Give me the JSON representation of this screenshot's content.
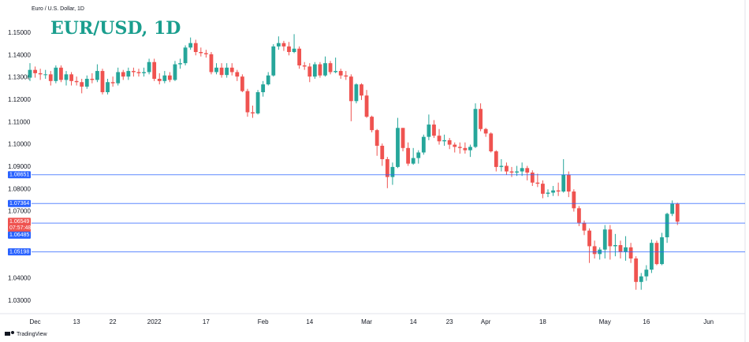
{
  "chart_data": {
    "type": "candlestick",
    "symbol_name": "Euro / U.S. Dollar, 1D",
    "title": "EUR/USD, 1D",
    "brand": "TradingView",
    "up_color": "#26a69a",
    "down_color": "#ef5350",
    "level_color": "#2962ff",
    "ylim": [
      1.0243,
      1.1648
    ],
    "yticks": [
      {
        "value": 1.15,
        "label": "1.15000"
      },
      {
        "value": 1.14,
        "label": "1.14000"
      },
      {
        "value": 1.13,
        "label": "1.13000"
      },
      {
        "value": 1.12,
        "label": "1.12000"
      },
      {
        "value": 1.11,
        "label": "1.11000"
      },
      {
        "value": 1.1,
        "label": "1.10000"
      },
      {
        "value": 1.09,
        "label": "1.09000"
      },
      {
        "value": 1.08,
        "label": "1.08000"
      },
      {
        "value": 1.07,
        "label": "1.07000"
      },
      {
        "value": 1.04,
        "label": "1.04000"
      },
      {
        "value": 1.03,
        "label": "1.03000"
      }
    ],
    "levels": [
      1.08651,
      1.07364,
      1.06485,
      1.05198
    ],
    "countdown": "07:57:48",
    "categories": [
      null,
      "Dec",
      null,
      null,
      null,
      null,
      null,
      null,
      null,
      "13",
      null,
      null,
      null,
      null,
      null,
      null,
      "22",
      null,
      null,
      null,
      null,
      null,
      null,
      null,
      "2022",
      null,
      null,
      null,
      null,
      null,
      null,
      null,
      null,
      null,
      "17",
      null,
      null,
      null,
      null,
      null,
      null,
      null,
      null,
      null,
      null,
      "Feb",
      null,
      null,
      null,
      null,
      null,
      null,
      null,
      null,
      "14",
      null,
      null,
      null,
      null,
      null,
      null,
      null,
      null,
      null,
      null,
      "Mar",
      null,
      null,
      null,
      null,
      null,
      null,
      null,
      null,
      "14",
      null,
      null,
      null,
      null,
      null,
      null,
      "23",
      null,
      null,
      null,
      null,
      null,
      null,
      "Apr",
      null,
      null,
      null,
      null,
      null,
      null,
      null,
      null,
      null,
      null,
      "18",
      null,
      null,
      null,
      null,
      null,
      null,
      null,
      null,
      null,
      null,
      null,
      "May",
      null,
      null,
      null,
      null,
      null,
      null,
      null,
      "16",
      null,
      null,
      null,
      null,
      null,
      null,
      null,
      null,
      null,
      null,
      null,
      "Jun",
      null,
      null,
      null,
      null,
      null,
      null
    ],
    "open": [
      1.13,
      1.1335,
      1.132,
      1.1315,
      1.1315,
      1.1285,
      1.1345,
      1.129,
      1.1315,
      1.1285,
      1.128,
      1.126,
      1.1295,
      1.129,
      1.133,
      1.1235,
      1.128,
      1.1275,
      1.1325,
      1.1305,
      1.133,
      1.1325,
      1.132,
      1.1325,
      1.137,
      1.1295,
      1.1285,
      1.131,
      1.129,
      1.136,
      1.1365,
      1.1435,
      1.1455,
      1.1415,
      1.141,
      1.1405,
      1.1325,
      1.1345,
      1.1312,
      1.1345,
      1.1325,
      1.1305,
      1.124,
      1.1145,
      1.114,
      1.1235,
      1.127,
      1.131,
      1.144,
      1.1455,
      1.144,
      1.1415,
      1.143,
      1.1355,
      1.135,
      1.1305,
      1.136,
      1.131,
      1.1365,
      1.1325,
      1.133,
      1.131,
      1.1305,
      1.1195,
      1.127,
      1.122,
      1.1125,
      1.1065,
      1.0995,
      1.0935,
      1.0855,
      1.09,
      1.1075,
      1.0985,
      1.0915,
      1.094,
      1.0965,
      1.1035,
      1.109,
      1.104,
      1.1015,
      1.102,
      1.1,
      1.099,
      1.0985,
      1.0975,
      1.099,
      1.116,
      1.107,
      1.105,
      1.097,
      1.09,
      1.0905,
      1.088,
      1.0875,
      1.088,
      1.0895,
      1.0875,
      1.083,
      1.0825,
      1.078,
      1.0785,
      1.0795,
      1.079,
      1.0865,
      1.079,
      1.0715,
      1.065,
      1.0615,
      1.0545,
      1.051,
      1.053,
      1.062,
      1.0545,
      1.055,
      1.052,
      1.054,
      1.049,
      1.0385,
      1.041,
      1.044,
      1.056,
      1.0465,
      1.0585,
      1.069,
      1.0735,
      null,
      null,
      null,
      null,
      null,
      null,
      null,
      null,
      null,
      null,
      null,
      null
    ],
    "high": [
      1.1365,
      1.135,
      1.134,
      1.1335,
      1.133,
      1.1355,
      1.1355,
      1.133,
      1.1325,
      1.1305,
      1.1295,
      1.131,
      1.132,
      1.136,
      1.134,
      1.1295,
      1.1305,
      1.1345,
      1.1335,
      1.1345,
      1.1345,
      1.134,
      1.1345,
      1.1385,
      1.1385,
      1.132,
      1.133,
      1.1325,
      1.1375,
      1.1385,
      1.1445,
      1.148,
      1.147,
      1.1435,
      1.1425,
      1.1415,
      1.1365,
      1.1365,
      1.1365,
      1.1365,
      1.1335,
      1.1315,
      1.125,
      1.1175,
      1.1245,
      1.1285,
      1.1325,
      1.145,
      1.1485,
      1.1465,
      1.146,
      1.1495,
      1.144,
      1.137,
      1.1365,
      1.137,
      1.137,
      1.1395,
      1.1375,
      1.139,
      1.134,
      1.133,
      1.1315,
      1.1275,
      1.1275,
      1.1245,
      1.113,
      1.107,
      1.1005,
      1.0945,
      1.092,
      1.112,
      1.1075,
      1.101,
      1.0985,
      1.0975,
      1.1045,
      1.1135,
      1.111,
      1.107,
      1.1045,
      1.103,
      1.101,
      1.101,
      1.101,
      1.1,
      1.1185,
      1.1185,
      1.1075,
      1.1055,
      1.0975,
      1.0935,
      1.092,
      1.09,
      1.0905,
      1.092,
      1.0905,
      1.0885,
      1.087,
      1.084,
      1.08,
      1.0815,
      1.083,
      1.0935,
      1.088,
      1.08,
      1.0725,
      1.066,
      1.0625,
      1.057,
      1.054,
      1.064,
      1.064,
      1.06,
      1.057,
      1.059,
      1.056,
      1.05,
      1.0425,
      1.046,
      1.0575,
      1.057,
      1.0605,
      1.0695,
      1.075,
      1.074,
      null,
      null,
      null,
      null,
      null,
      null,
      null,
      null,
      null,
      null,
      null,
      null
    ],
    "low": [
      1.1285,
      1.13,
      1.129,
      1.1295,
      1.1265,
      1.1275,
      1.128,
      1.1265,
      1.1265,
      1.1265,
      1.123,
      1.125,
      1.1275,
      1.128,
      1.1225,
      1.1225,
      1.126,
      1.1265,
      1.129,
      1.129,
      1.1305,
      1.1305,
      1.1305,
      1.1315,
      1.1285,
      1.127,
      1.1275,
      1.128,
      1.1285,
      1.134,
      1.1355,
      1.1425,
      1.14,
      1.1395,
      1.139,
      1.1315,
      1.1315,
      1.13,
      1.13,
      1.131,
      1.1285,
      1.1235,
      1.1125,
      1.112,
      1.1135,
      1.1215,
      1.1265,
      1.1305,
      1.1425,
      1.142,
      1.14,
      1.141,
      1.134,
      1.1335,
      1.128,
      1.1295,
      1.13,
      1.1305,
      1.1315,
      1.132,
      1.1295,
      1.129,
      1.1105,
      1.1185,
      1.12,
      1.112,
      1.1055,
      1.095,
      1.0905,
      1.0805,
      1.082,
      1.0895,
      1.097,
      1.0905,
      1.091,
      1.0915,
      1.0955,
      1.102,
      1.103,
      1.1,
      1.0995,
      1.098,
      1.0965,
      1.096,
      1.096,
      1.0945,
      1.0985,
      1.106,
      1.1035,
      1.0965,
      1.088,
      1.088,
      1.0865,
      1.0855,
      1.086,
      1.086,
      1.084,
      1.0815,
      1.081,
      1.076,
      1.0765,
      1.077,
      1.077,
      1.0785,
      1.0765,
      1.07,
      1.0635,
      1.0595,
      1.047,
      1.049,
      1.0485,
      1.049,
      1.0485,
      1.05,
      1.049,
      1.048,
      1.047,
      1.035,
      1.035,
      1.039,
      1.0425,
      1.046,
      1.046,
      1.056,
      1.068,
      1.064,
      null,
      null,
      null,
      null,
      null,
      null,
      null,
      null,
      null,
      null,
      null,
      null
    ],
    "close": [
      1.1335,
      1.132,
      1.1315,
      1.1315,
      1.1285,
      1.1345,
      1.129,
      1.1315,
      1.1285,
      1.128,
      1.126,
      1.1295,
      1.129,
      1.133,
      1.1235,
      1.128,
      1.1275,
      1.1325,
      1.1305,
      1.133,
      1.1325,
      1.132,
      1.1325,
      1.137,
      1.1295,
      1.1285,
      1.131,
      1.129,
      1.136,
      1.1365,
      1.1435,
      1.1455,
      1.1415,
      1.141,
      1.1405,
      1.1325,
      1.1345,
      1.1312,
      1.1345,
      1.1325,
      1.1305,
      1.124,
      1.1145,
      1.114,
      1.1235,
      1.127,
      1.131,
      1.144,
      1.1455,
      1.144,
      1.1415,
      1.143,
      1.1355,
      1.135,
      1.1305,
      1.136,
      1.131,
      1.1365,
      1.1325,
      1.133,
      1.131,
      1.1305,
      1.1195,
      1.127,
      1.122,
      1.1125,
      1.1065,
      1.0995,
      1.0935,
      1.0855,
      1.09,
      1.1075,
      1.0985,
      1.0915,
      1.094,
      1.0965,
      1.1035,
      1.109,
      1.104,
      1.1015,
      1.102,
      1.1,
      1.099,
      1.0985,
      1.0975,
      1.099,
      1.116,
      1.107,
      1.105,
      1.097,
      1.09,
      1.0905,
      1.088,
      1.0875,
      1.088,
      1.0895,
      1.0875,
      1.083,
      1.0825,
      1.078,
      1.0785,
      1.0795,
      1.079,
      1.0865,
      1.079,
      1.0715,
      1.065,
      1.0615,
      1.0545,
      1.051,
      1.053,
      1.062,
      1.0545,
      1.055,
      1.052,
      1.054,
      1.049,
      1.0385,
      1.041,
      1.044,
      1.056,
      1.0465,
      1.0585,
      1.069,
      1.0735,
      1.06549,
      null,
      null,
      null,
      null,
      null,
      null,
      null,
      null,
      null,
      null,
      null,
      null
    ]
  }
}
